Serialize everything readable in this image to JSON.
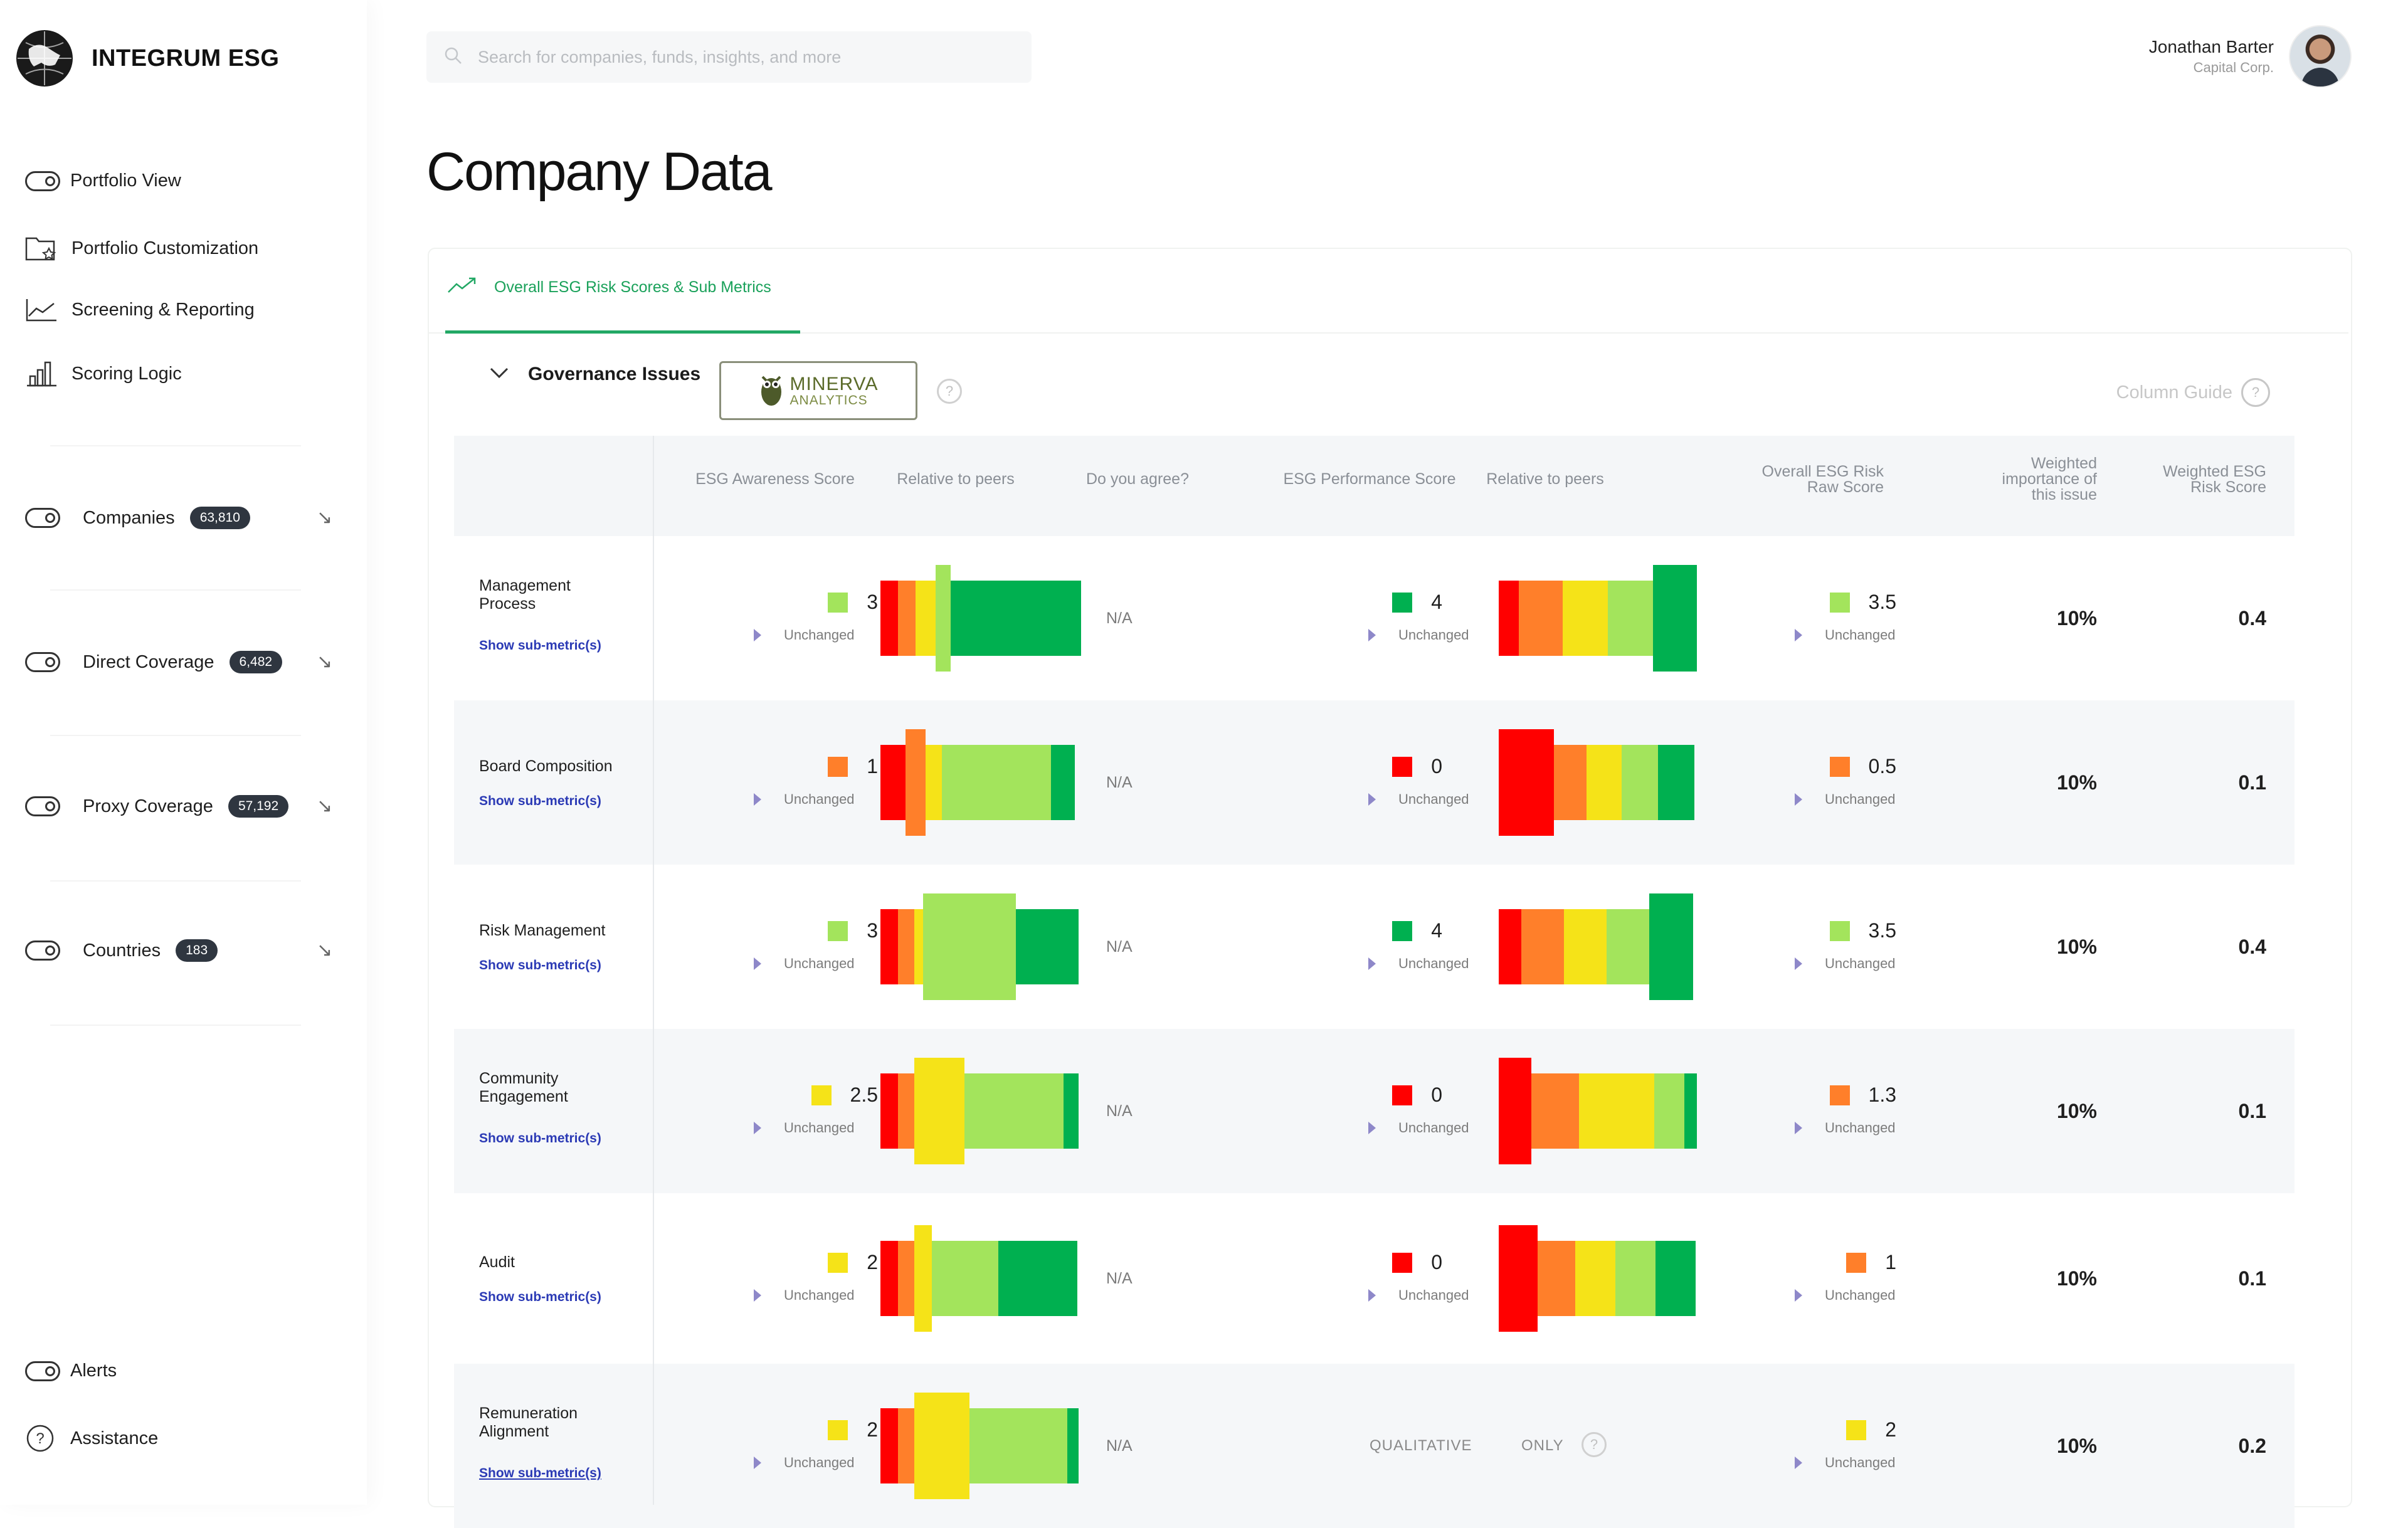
{
  "app": {
    "brand": "INTEGRUM ESG"
  },
  "search": {
    "placeholder": "Search for companies, funds, insights, and more"
  },
  "user": {
    "name": "Jonathan Barter",
    "company": "Capital Corp."
  },
  "sidebar": {
    "items": [
      {
        "label": "Portfolio View",
        "icon": "toggle-icon"
      },
      {
        "label": "Portfolio Customization",
        "icon": "folder-star-icon"
      },
      {
        "label": "Screening & Reporting",
        "icon": "line-chart-icon"
      },
      {
        "label": "Scoring Logic",
        "icon": "bar-chart-icon"
      }
    ],
    "coverage": [
      {
        "label": "Companies",
        "count": "63,810"
      },
      {
        "label": "Direct Coverage",
        "count": "6,482"
      },
      {
        "label": "Proxy Coverage",
        "count": "57,192"
      },
      {
        "label": "Countries",
        "count": "183"
      }
    ],
    "bottom": [
      {
        "label": "Alerts",
        "icon": "toggle-icon"
      },
      {
        "label": "Assistance",
        "icon": "help-circle-icon"
      }
    ]
  },
  "page": {
    "title": "Company Data"
  },
  "tab": {
    "label": "Overall ESG Risk Scores & Sub Metrics"
  },
  "section": {
    "label": "Governance Issues",
    "provider_line1": "MINERVA",
    "provider_line2": "ANALYTICS",
    "column_guide": "Column Guide"
  },
  "columns": {
    "awareness": "ESG Awareness Score",
    "rel1": "Relative to peers",
    "agree": "Do you agree?",
    "performance": "ESG Performance Score",
    "rel2": "Relative to peers",
    "raw_l1": "Overall ESG Risk",
    "raw_l2": "Raw Score",
    "weight_l1": "Weighted",
    "weight_l2": "importance of",
    "weight_l3": "this issue",
    "wrisk_l1": "Weighted ESG",
    "wrisk_l2": "Risk Score"
  },
  "colors": {
    "red": "#ff0000",
    "orange": "#ff7f2a",
    "yellow": "#f5e318",
    "lightgreen": "#a3e45c",
    "green": "#00b050",
    "accent": "#22a865"
  },
  "rows": [
    {
      "name_l1": "Management",
      "name_l2": "Process",
      "link": "Show sub-metric(s)",
      "aw": "3",
      "aw_color": "#a3e45c",
      "aw_change": "Unchanged",
      "agree": "N/A",
      "perf": "4",
      "perf_color": "#00b050",
      "perf_change": "Unchanged",
      "raw": "3.5",
      "raw_color": "#a3e45c",
      "raw_change": "Unchanged",
      "weight": "10%",
      "wrisk": "0.4"
    },
    {
      "name_l1": "Board Composition",
      "name_l2": "",
      "link": "Show sub-metric(s)",
      "aw": "1",
      "aw_color": "#ff7f2a",
      "aw_change": "Unchanged",
      "agree": "N/A",
      "perf": "0",
      "perf_color": "#ff0000",
      "perf_change": "Unchanged",
      "raw": "0.5",
      "raw_color": "#ff7f2a",
      "raw_change": "Unchanged",
      "weight": "10%",
      "wrisk": "0.1"
    },
    {
      "name_l1": "Risk Management",
      "name_l2": "",
      "link": "Show sub-metric(s)",
      "aw": "3",
      "aw_color": "#a3e45c",
      "aw_change": "Unchanged",
      "agree": "N/A",
      "perf": "4",
      "perf_color": "#00b050",
      "perf_change": "Unchanged",
      "raw": "3.5",
      "raw_color": "#a3e45c",
      "raw_change": "Unchanged",
      "weight": "10%",
      "wrisk": "0.4"
    },
    {
      "name_l1": "Community",
      "name_l2": "Engagement",
      "link": "Show sub-metric(s)",
      "aw": "2.5",
      "aw_color": "#f5e318",
      "aw_change": "Unchanged",
      "agree": "N/A",
      "perf": "0",
      "perf_color": "#ff0000",
      "perf_change": "Unchanged",
      "raw": "1.3",
      "raw_color": "#ff7f2a",
      "raw_change": "Unchanged",
      "weight": "10%",
      "wrisk": "0.1"
    },
    {
      "name_l1": "Audit",
      "name_l2": "",
      "link": "Show sub-metric(s)",
      "aw": "2",
      "aw_color": "#f5e318",
      "aw_change": "Unchanged",
      "agree": "N/A",
      "perf": "0",
      "perf_color": "#ff0000",
      "perf_change": "Unchanged",
      "raw": "1",
      "raw_color": "#ff7f2a",
      "raw_change": "Unchanged",
      "weight": "10%",
      "wrisk": "0.1"
    },
    {
      "name_l1": "Remuneration",
      "name_l2": "Alignment",
      "link": "Show sub-metric(s)",
      "aw": "2",
      "aw_color": "#f5e318",
      "aw_change": "Unchanged",
      "agree": "N/A",
      "perf_q1": "QUALITATIVE",
      "perf_q2": "ONLY",
      "raw": "2",
      "raw_color": "#f5e318",
      "raw_change": "Unchanged",
      "weight": "10%",
      "wrisk": "0.2"
    }
  ],
  "chart_data": [
    {
      "type": "bar",
      "title": "",
      "note": "Relative to peers (awareness) — band distribution per row, highlighted segment = company position",
      "series": [
        {
          "name": "Management Process",
          "segments": [
            "red",
            "orange",
            "yellow",
            "lightgreen",
            "green"
          ],
          "highlight": "lightgreen"
        },
        {
          "name": "Board Composition",
          "segments": [
            "red",
            "orange",
            "yellow",
            "lightgreen",
            "green"
          ],
          "highlight": "orange"
        },
        {
          "name": "Risk Management",
          "segments": [
            "red",
            "orange",
            "yellow",
            "lightgreen",
            "green"
          ],
          "highlight": "lightgreen"
        },
        {
          "name": "Community Engagement",
          "segments": [
            "red",
            "orange",
            "yellow",
            "lightgreen",
            "green"
          ],
          "highlight": "yellow"
        },
        {
          "name": "Audit",
          "segments": [
            "red",
            "orange",
            "yellow",
            "lightgreen",
            "green"
          ],
          "highlight": "yellow"
        },
        {
          "name": "Remuneration Alignment",
          "segments": [
            "red",
            "orange",
            "yellow",
            "lightgreen",
            "green"
          ],
          "highlight": "yellow"
        }
      ]
    },
    {
      "type": "bar",
      "title": "",
      "note": "Relative to peers (performance)",
      "series": [
        {
          "name": "Management Process",
          "segments": [
            "red",
            "orange",
            "yellow",
            "lightgreen",
            "green"
          ],
          "highlight": "green"
        },
        {
          "name": "Board Composition",
          "segments": [
            "red",
            "orange",
            "yellow",
            "lightgreen",
            "green"
          ],
          "highlight": "red"
        },
        {
          "name": "Risk Management",
          "segments": [
            "red",
            "orange",
            "yellow",
            "lightgreen",
            "green"
          ],
          "highlight": "green"
        },
        {
          "name": "Community Engagement",
          "segments": [
            "red",
            "orange",
            "yellow",
            "lightgreen",
            "green"
          ],
          "highlight": "red"
        },
        {
          "name": "Audit",
          "segments": [
            "red",
            "orange",
            "yellow",
            "lightgreen",
            "green"
          ],
          "highlight": "red"
        }
      ]
    }
  ]
}
